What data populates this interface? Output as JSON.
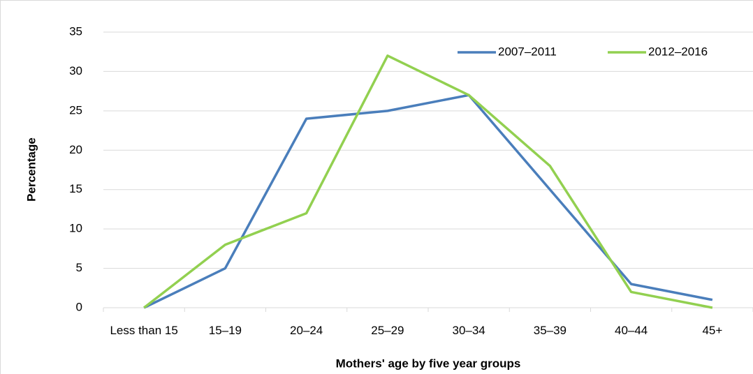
{
  "chart_data": {
    "type": "line",
    "x_label": "Mothers' age by five year groups",
    "y_label": "Percentage",
    "categories": [
      "Less than 15",
      "15–19",
      "20–24",
      "25–29",
      "30–34",
      "35–39",
      "40–44",
      "45+"
    ],
    "series": [
      {
        "name": "2007–2011",
        "color": "#4a7ebb",
        "values": [
          0,
          5,
          24,
          25,
          27,
          15,
          3,
          1
        ]
      },
      {
        "name": "2012–2016",
        "color": "#92d050",
        "values": [
          0,
          8,
          12,
          32,
          27,
          18,
          2,
          0
        ]
      }
    ],
    "ylim": [
      0,
      35
    ],
    "yticks": [
      0,
      5,
      10,
      15,
      20,
      25,
      30,
      35
    ],
    "grid": true,
    "legend": "upper right"
  }
}
